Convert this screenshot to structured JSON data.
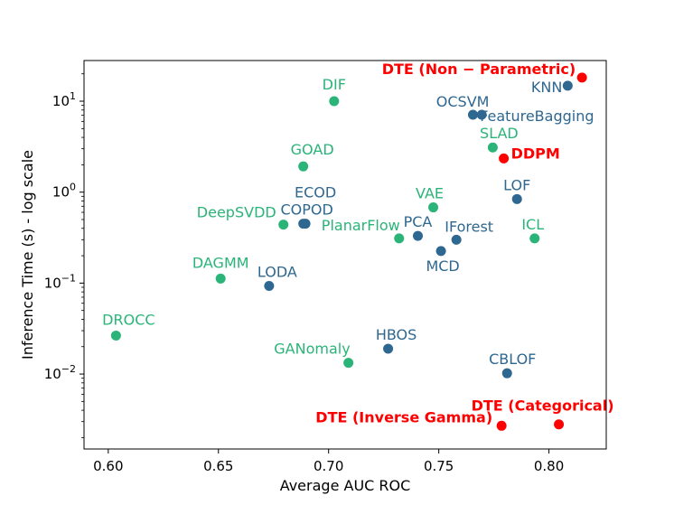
{
  "chart_data": {
    "type": "scatter",
    "title": "",
    "xlabel": "Average AUC ROC",
    "ylabel": "Inference Time (s) - log scale",
    "xscale": "linear",
    "yscale": "log",
    "xlim": [
      0.589,
      0.826
    ],
    "ylim": [
      0.0015,
      28
    ],
    "x_ticks": [
      {
        "value": 0.6,
        "label": "0.60"
      },
      {
        "value": 0.65,
        "label": "0.65"
      },
      {
        "value": 0.7,
        "label": "0.70"
      },
      {
        "value": 0.75,
        "label": "0.75"
      },
      {
        "value": 0.8,
        "label": "0.80"
      }
    ],
    "y_ticks": [
      {
        "value": 0.01,
        "base": "10",
        "exp": "−2"
      },
      {
        "value": 0.1,
        "base": "10",
        "exp": "−1"
      },
      {
        "value": 1,
        "base": "10",
        "exp": "0"
      },
      {
        "value": 10,
        "base": "10",
        "exp": "1"
      }
    ],
    "colors": {
      "green": "#2ab478",
      "blue": "#2e6790",
      "red": "#ff0000"
    },
    "points": [
      {
        "name": "DIF",
        "x": 0.7025,
        "y": 10.0,
        "color": "green",
        "anchor": "middle",
        "dx": 0,
        "dy": -13
      },
      {
        "name": "GOAD",
        "x": 0.6885,
        "y": 1.92,
        "color": "green",
        "anchor": "middle",
        "dx": 10,
        "dy": -13
      },
      {
        "name": "DeepSVDD",
        "x": 0.6795,
        "y": 0.44,
        "color": "green",
        "anchor": "end",
        "dx": -8,
        "dy": -8
      },
      {
        "name": "DAGMM",
        "x": 0.651,
        "y": 0.112,
        "color": "green",
        "anchor": "middle",
        "dx": 0,
        "dy": -12
      },
      {
        "name": "DROCC",
        "x": 0.6035,
        "y": 0.0265,
        "color": "green",
        "anchor": "middle",
        "dx": 14,
        "dy": -12
      },
      {
        "name": "GANomaly",
        "x": 0.709,
        "y": 0.0133,
        "color": "green",
        "anchor": "end",
        "dx": 2,
        "dy": -10
      },
      {
        "name": "PlanarFlow",
        "x": 0.732,
        "y": 0.31,
        "color": "green",
        "anchor": "end",
        "dx": 1,
        "dy": -9
      },
      {
        "name": "VAE",
        "x": 0.7475,
        "y": 0.68,
        "color": "green",
        "anchor": "middle",
        "dx": -4,
        "dy": -10
      },
      {
        "name": "SLAD",
        "x": 0.7745,
        "y": 3.1,
        "color": "green",
        "anchor": "middle",
        "dx": 7,
        "dy": -10
      },
      {
        "name": "ICL",
        "x": 0.7935,
        "y": 0.31,
        "color": "green",
        "anchor": "middle",
        "dx": -2,
        "dy": -10
      },
      {
        "name": "KNN",
        "x": 0.8085,
        "y": 14.8,
        "color": "blue",
        "anchor": "end",
        "dx": -6,
        "dy": 7
      },
      {
        "name": "OCSVM",
        "x": 0.7655,
        "y": 7.1,
        "color": "blue",
        "anchor": "end",
        "dx": 18,
        "dy": -9
      },
      {
        "name": "FeatureBagging",
        "x": 0.7695,
        "y": 7.1,
        "color": "blue",
        "anchor": "start",
        "dx": -2,
        "dy": 7
      },
      {
        "name": "LOF",
        "x": 0.7855,
        "y": 0.84,
        "color": "blue",
        "anchor": "middle",
        "dx": 0,
        "dy": -10
      },
      {
        "name": "ECOD",
        "x": 0.6895,
        "y": 0.45,
        "color": "blue",
        "anchor": "middle",
        "dx": 11,
        "dy": -29
      },
      {
        "name": "COPOD",
        "x": 0.6885,
        "y": 0.45,
        "color": "blue",
        "anchor": "middle",
        "dx": 4,
        "dy": -10
      },
      {
        "name": "PCA",
        "x": 0.7405,
        "y": 0.33,
        "color": "blue",
        "anchor": "middle",
        "dx": 0,
        "dy": -10
      },
      {
        "name": "IForest",
        "x": 0.758,
        "y": 0.3,
        "color": "blue",
        "anchor": "middle",
        "dx": 14,
        "dy": -9
      },
      {
        "name": "MCD",
        "x": 0.751,
        "y": 0.225,
        "color": "blue",
        "anchor": "middle",
        "dx": 2,
        "dy": 22
      },
      {
        "name": "LODA",
        "x": 0.673,
        "y": 0.093,
        "color": "blue",
        "anchor": "middle",
        "dx": 9,
        "dy": -10
      },
      {
        "name": "HBOS",
        "x": 0.727,
        "y": 0.019,
        "color": "blue",
        "anchor": "middle",
        "dx": 9,
        "dy": -10
      },
      {
        "name": "CBLOF",
        "x": 0.781,
        "y": 0.0102,
        "color": "blue",
        "anchor": "middle",
        "dx": 6,
        "dy": -10
      },
      {
        "name": "DTE (Non − Parametric)",
        "x": 0.815,
        "y": 18.2,
        "color": "red",
        "anchor": "end",
        "dx": -7,
        "dy": -4,
        "bold": true
      },
      {
        "name": "DDPM",
        "x": 0.7795,
        "y": 2.35,
        "color": "red",
        "anchor": "start",
        "dx": 8,
        "dy": 0,
        "bold": true
      },
      {
        "name": "DTE (Inverse Gamma)",
        "x": 0.7785,
        "y": 0.0027,
        "color": "red",
        "anchor": "end",
        "dx": -10,
        "dy": -4,
        "bold": true
      },
      {
        "name": "DTE (Categorical)",
        "x": 0.8045,
        "y": 0.0028,
        "color": "red",
        "anchor": "middle",
        "dx": -18,
        "dy": -15,
        "bold": true
      }
    ]
  }
}
